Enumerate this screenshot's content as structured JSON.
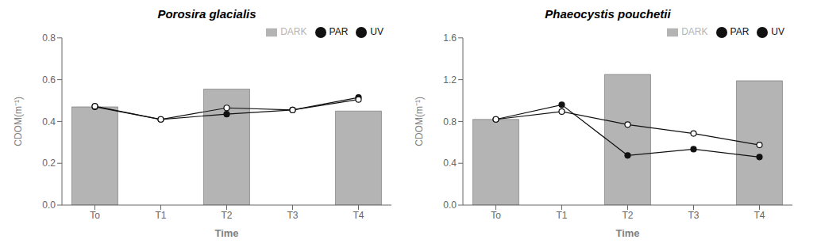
{
  "chart_data": [
    {
      "type": "bar",
      "title": "Porosira glacialis",
      "x_label": "Time",
      "y_label": "CDOM(m⁻¹)",
      "categories": [
        "To",
        "T1",
        "T2",
        "T3",
        "T4"
      ],
      "series": [
        {
          "name": "DARK",
          "type": "bar",
          "color": "#b4b4b4",
          "values": [
            0.47,
            null,
            0.555,
            null,
            0.45
          ]
        },
        {
          "name": "PAR",
          "type": "line",
          "color": "#111111",
          "marker": "filled_circle",
          "values": [
            0.47,
            0.41,
            0.435,
            0.455,
            0.515
          ]
        },
        {
          "name": "UV",
          "type": "line",
          "color": "#111111",
          "marker": "open_circle",
          "values": [
            0.473,
            0.41,
            0.465,
            0.455,
            0.505
          ]
        }
      ],
      "ylim": [
        0.0,
        0.8
      ],
      "yticks": [
        {
          "value": 0.0,
          "label": "0.0"
        },
        0.2,
        0.4,
        0.6,
        0.8
      ],
      "legend": "upper right"
    },
    {
      "type": "bar",
      "title": "Phaeocystis pouchetii",
      "x_label": "Time",
      "y_label": "CDOM(m⁻¹)",
      "categories": [
        "To",
        "T1",
        "T2",
        "T3",
        "T4"
      ],
      "series": [
        {
          "name": "DARK",
          "type": "bar",
          "color": "#b4b4b4",
          "values": [
            0.82,
            null,
            1.25,
            null,
            1.19
          ]
        },
        {
          "name": "PAR",
          "type": "line",
          "color": "#111111",
          "marker": "filled_circle",
          "values": [
            0.82,
            0.96,
            0.475,
            0.535,
            0.46
          ]
        },
        {
          "name": "UV",
          "type": "line",
          "color": "#111111",
          "marker": "open_circle",
          "values": [
            0.82,
            0.895,
            0.77,
            0.685,
            0.575
          ]
        }
      ],
      "ylim": [
        0.0,
        1.6
      ],
      "yticks": [
        {
          "value": 0.0,
          "label": "0.0"
        },
        0.4,
        0.8,
        1.2,
        1.6
      ],
      "legend": "upper right"
    }
  ]
}
